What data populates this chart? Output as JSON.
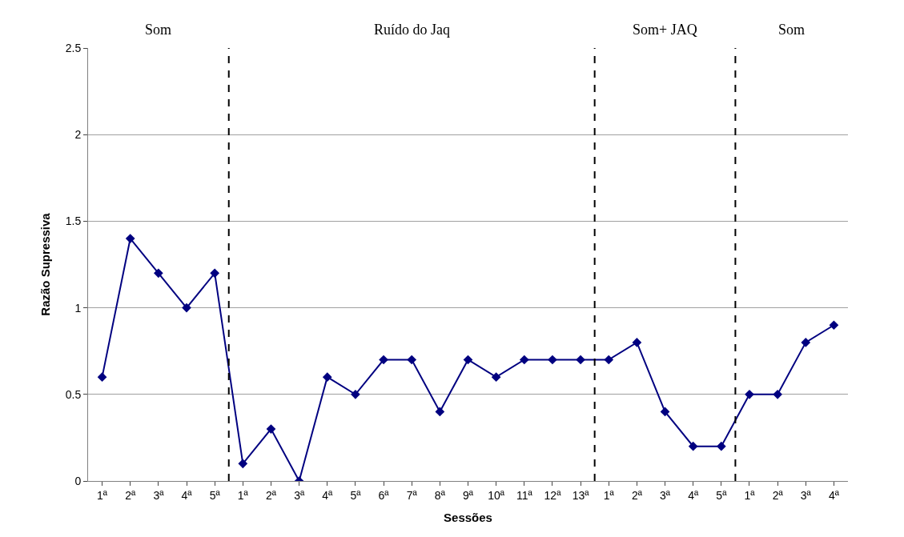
{
  "chart_data": {
    "type": "line",
    "xlabel": "Sessões",
    "ylabel": "Razão Supressiva",
    "categories": [
      "1ª",
      "2ª",
      "3ª",
      "4ª",
      "5ª",
      "1ª",
      "2ª",
      "3ª",
      "4ª",
      "5ª",
      "6ª",
      "7ª",
      "8ª",
      "9ª",
      "10ª",
      "11ª",
      "12ª",
      "13ª",
      "1ª",
      "2ª",
      "3ª",
      "4ª",
      "5ª",
      "1ª",
      "2ª",
      "3ª",
      "4ª"
    ],
    "series": [
      {
        "color": "#000080",
        "values": [
          0.6,
          1.4,
          1.2,
          1.0,
          1.2,
          0.1,
          0.3,
          0,
          0.6,
          0.5,
          0.7,
          0.7,
          0.4,
          0.7,
          0.6,
          0.7,
          0.7,
          0.7,
          0.7,
          0.8,
          0.4,
          0.2,
          0.2,
          0.5,
          0.5,
          0.8,
          0.9
        ]
      }
    ],
    "ylim": [
      0,
      2.5
    ],
    "yticks": [
      0,
      0.5,
      1,
      1.5,
      2,
      2.5
    ],
    "grid": "y",
    "marker": "diamond",
    "line_style": "solid",
    "legend": false,
    "annotations": [
      "Som",
      "Ruído do Jaq",
      "Som+ JAQ",
      "Som"
    ]
  }
}
